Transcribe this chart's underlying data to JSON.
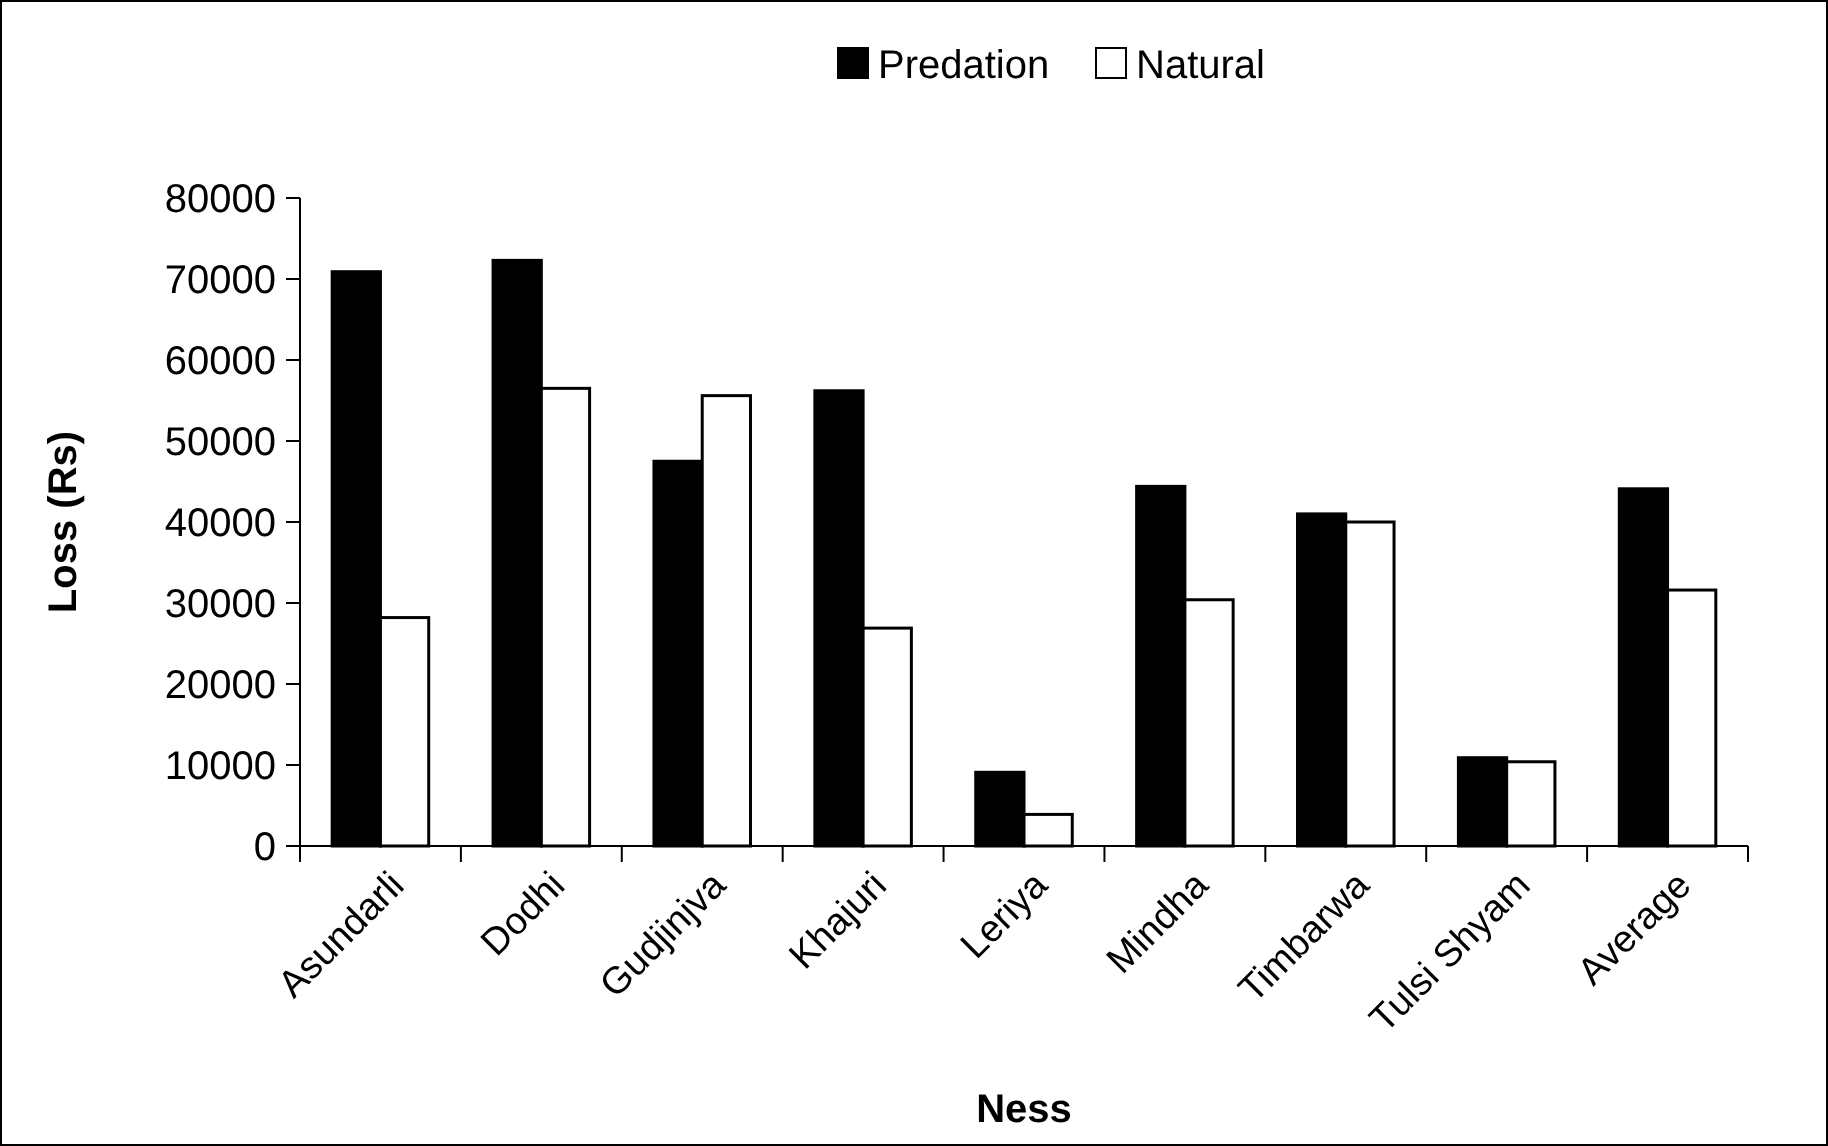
{
  "chart_data": {
    "type": "bar",
    "xlabel": "Ness",
    "ylabel": "Loss (Rs)",
    "categories": [
      "Asundarli",
      "Dodhi",
      "Gudjinjva",
      "Khajuri",
      "Leriya",
      "Mindha",
      "Timbarwa",
      "Tulsi Shyam",
      "Average"
    ],
    "series": [
      {
        "name": "Predation",
        "color": "#000000",
        "values": [
          70900,
          72300,
          47500,
          56200,
          9100,
          44400,
          41000,
          10900,
          44100
        ]
      },
      {
        "name": "Natural",
        "color": "#ffffff",
        "values": [
          28200,
          56500,
          55600,
          26900,
          3900,
          30400,
          40000,
          10400,
          31600
        ]
      }
    ],
    "ylim": [
      0,
      80000
    ],
    "yticks": [
      0,
      10000,
      20000,
      30000,
      40000,
      50000,
      60000,
      70000,
      80000
    ],
    "grid": false,
    "legend": "top"
  }
}
